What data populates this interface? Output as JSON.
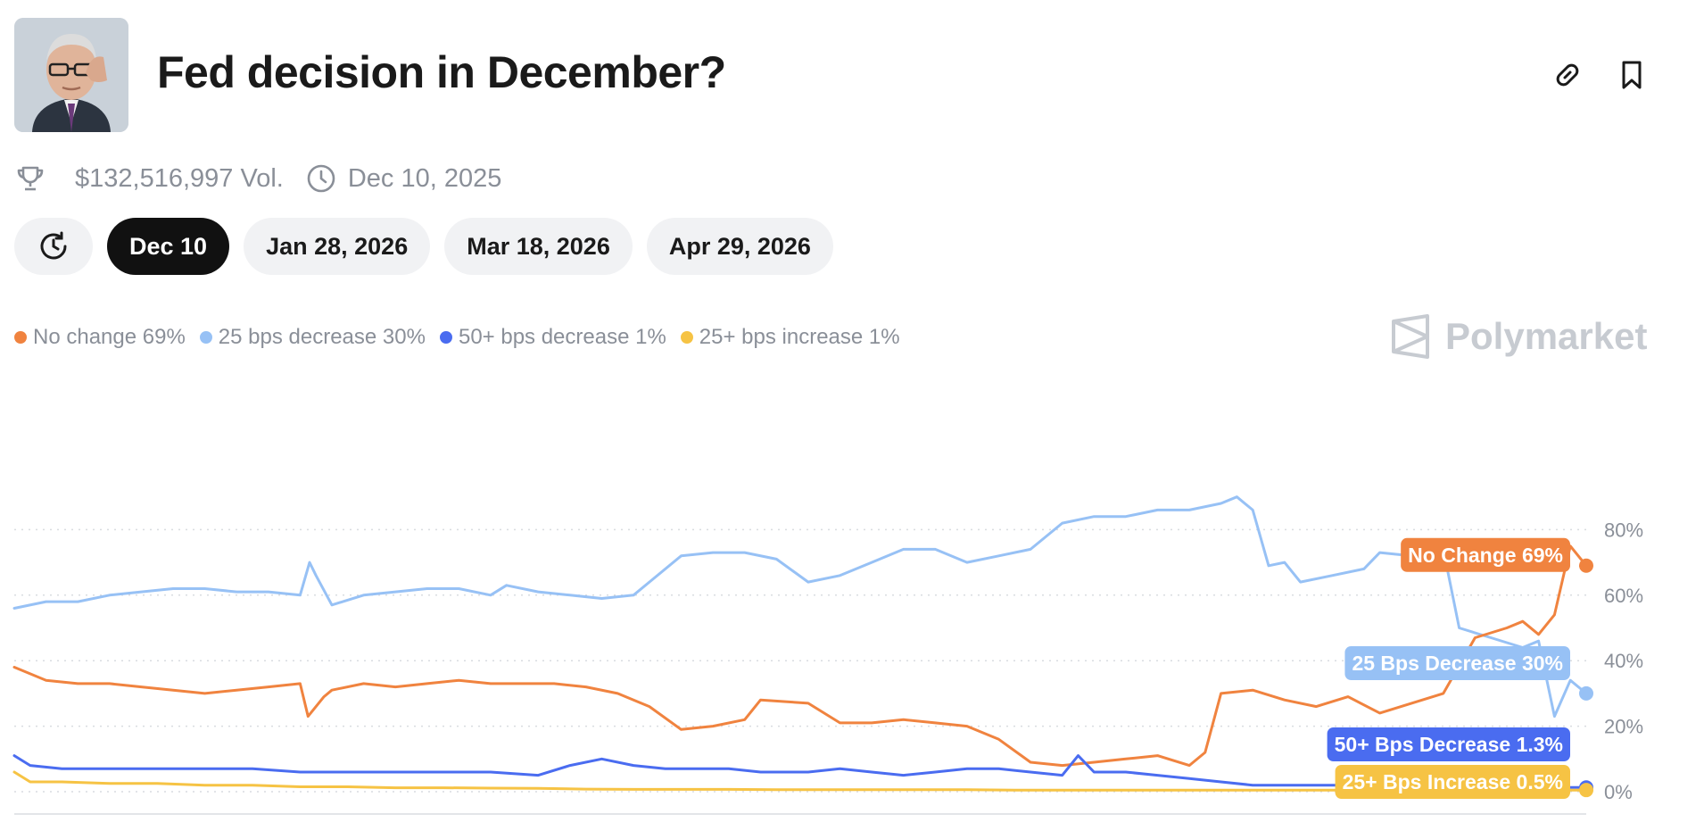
{
  "header": {
    "title": "Fed decision in December?"
  },
  "meta": {
    "volume": "$132,516,997 Vol.",
    "date": "Dec 10, 2025"
  },
  "tabs": [
    {
      "label": "Dec 10",
      "active": true
    },
    {
      "label": "Jan 28, 2026",
      "active": false
    },
    {
      "label": "Mar 18, 2026",
      "active": false
    },
    {
      "label": "Apr 29, 2026",
      "active": false
    }
  ],
  "brand": "Polymarket",
  "colors": {
    "no_change": "#f0833f",
    "bps25_decrease": "#97c1f5",
    "bps50_decrease": "#4a6cf0",
    "bps25_increase": "#f6c344"
  },
  "chart_data": {
    "type": "line",
    "y_range": [
      0,
      100
    ],
    "y_ticks": [
      0,
      20,
      40,
      60,
      80
    ],
    "y_tick_labels": [
      "0%",
      "20%",
      "40%",
      "60%",
      "80%"
    ],
    "grid": true,
    "legend": [
      "No change 69%",
      "25 bps decrease 30%",
      "50+ bps decrease 1%",
      "25+ bps increase 1%"
    ],
    "end_labels": [
      "No Change 69%",
      "25 Bps Decrease 30%",
      "50+ Bps Decrease 1.3%",
      "25+ Bps Increase 0.5%"
    ],
    "series": [
      {
        "key": "no_change",
        "points": [
          [
            0,
            38
          ],
          [
            2,
            34
          ],
          [
            4,
            33
          ],
          [
            6,
            33
          ],
          [
            8,
            32
          ],
          [
            10,
            31
          ],
          [
            12,
            30
          ],
          [
            14,
            31
          ],
          [
            16,
            32
          ],
          [
            18,
            33
          ],
          [
            18.5,
            23
          ],
          [
            19.5,
            29
          ],
          [
            20,
            31
          ],
          [
            22,
            33
          ],
          [
            24,
            32
          ],
          [
            26,
            33
          ],
          [
            28,
            34
          ],
          [
            30,
            33
          ],
          [
            32,
            33
          ],
          [
            34,
            33
          ],
          [
            36,
            32
          ],
          [
            38,
            30
          ],
          [
            40,
            26
          ],
          [
            42,
            19
          ],
          [
            44,
            20
          ],
          [
            46,
            22
          ],
          [
            47,
            28
          ],
          [
            50,
            27
          ],
          [
            52,
            21
          ],
          [
            54,
            21
          ],
          [
            56,
            22
          ],
          [
            58,
            21
          ],
          [
            60,
            20
          ],
          [
            62,
            16
          ],
          [
            64,
            9
          ],
          [
            66,
            8
          ],
          [
            68,
            9
          ],
          [
            70,
            10
          ],
          [
            72,
            11
          ],
          [
            74,
            8
          ],
          [
            75,
            12
          ],
          [
            76,
            30
          ],
          [
            78,
            31
          ],
          [
            80,
            28
          ],
          [
            82,
            26
          ],
          [
            84,
            29
          ],
          [
            86,
            24
          ],
          [
            88,
            27
          ],
          [
            90,
            30
          ],
          [
            92,
            47
          ],
          [
            94,
            50
          ],
          [
            95,
            52
          ],
          [
            96,
            48
          ],
          [
            97,
            54
          ],
          [
            98,
            75
          ],
          [
            99,
            69
          ]
        ]
      },
      {
        "key": "bps25_decrease",
        "points": [
          [
            0,
            56
          ],
          [
            2,
            58
          ],
          [
            4,
            58
          ],
          [
            6,
            60
          ],
          [
            8,
            61
          ],
          [
            10,
            62
          ],
          [
            12,
            62
          ],
          [
            14,
            61
          ],
          [
            16,
            61
          ],
          [
            18,
            60
          ],
          [
            18.6,
            70
          ],
          [
            19,
            66
          ],
          [
            20,
            57
          ],
          [
            22,
            60
          ],
          [
            24,
            61
          ],
          [
            26,
            62
          ],
          [
            28,
            62
          ],
          [
            30,
            60
          ],
          [
            31,
            63
          ],
          [
            33,
            61
          ],
          [
            35,
            60
          ],
          [
            37,
            59
          ],
          [
            39,
            60
          ],
          [
            40,
            64
          ],
          [
            42,
            72
          ],
          [
            44,
            73
          ],
          [
            46,
            73
          ],
          [
            48,
            71
          ],
          [
            50,
            64
          ],
          [
            52,
            66
          ],
          [
            54,
            70
          ],
          [
            56,
            74
          ],
          [
            58,
            74
          ],
          [
            60,
            70
          ],
          [
            62,
            72
          ],
          [
            64,
            74
          ],
          [
            66,
            82
          ],
          [
            68,
            84
          ],
          [
            70,
            84
          ],
          [
            72,
            86
          ],
          [
            74,
            86
          ],
          [
            76,
            88
          ],
          [
            77,
            90
          ],
          [
            78,
            86
          ],
          [
            79,
            69
          ],
          [
            80,
            70
          ],
          [
            81,
            64
          ],
          [
            83,
            66
          ],
          [
            85,
            68
          ],
          [
            86,
            73
          ],
          [
            88,
            72
          ],
          [
            90,
            74
          ],
          [
            91,
            50
          ],
          [
            93,
            47
          ],
          [
            95,
            44
          ],
          [
            96,
            46
          ],
          [
            97,
            23
          ],
          [
            98,
            34
          ],
          [
            99,
            30
          ]
        ]
      },
      {
        "key": "bps50_decrease",
        "points": [
          [
            0,
            11
          ],
          [
            1,
            8
          ],
          [
            3,
            7
          ],
          [
            6,
            7
          ],
          [
            9,
            7
          ],
          [
            12,
            7
          ],
          [
            15,
            7
          ],
          [
            18,
            6
          ],
          [
            21,
            6
          ],
          [
            24,
            6
          ],
          [
            27,
            6
          ],
          [
            30,
            6
          ],
          [
            33,
            5
          ],
          [
            35,
            8
          ],
          [
            37,
            10
          ],
          [
            39,
            8
          ],
          [
            41,
            7
          ],
          [
            43,
            7
          ],
          [
            45,
            7
          ],
          [
            47,
            6
          ],
          [
            50,
            6
          ],
          [
            52,
            7
          ],
          [
            54,
            6
          ],
          [
            56,
            5
          ],
          [
            58,
            6
          ],
          [
            60,
            7
          ],
          [
            62,
            7
          ],
          [
            64,
            6
          ],
          [
            66,
            5
          ],
          [
            67,
            11
          ],
          [
            68,
            6
          ],
          [
            70,
            6
          ],
          [
            72,
            5
          ],
          [
            74,
            4
          ],
          [
            76,
            3
          ],
          [
            78,
            2
          ],
          [
            80,
            2
          ],
          [
            82,
            2
          ],
          [
            84,
            2
          ],
          [
            86,
            1.5
          ],
          [
            88,
            1.5
          ],
          [
            90,
            1.5
          ],
          [
            92,
            1.3
          ],
          [
            94,
            1.3
          ],
          [
            96,
            1.3
          ],
          [
            98,
            1.3
          ],
          [
            99,
            1.3
          ]
        ]
      },
      {
        "key": "bps25_increase",
        "points": [
          [
            0,
            6
          ],
          [
            1,
            3
          ],
          [
            3,
            3
          ],
          [
            6,
            2.5
          ],
          [
            9,
            2.5
          ],
          [
            12,
            2
          ],
          [
            15,
            2
          ],
          [
            18,
            1.5
          ],
          [
            21,
            1.5
          ],
          [
            24,
            1.2
          ],
          [
            27,
            1.2
          ],
          [
            30,
            1.1
          ],
          [
            33,
            1
          ],
          [
            36,
            0.8
          ],
          [
            39,
            0.7
          ],
          [
            42,
            0.7
          ],
          [
            45,
            0.7
          ],
          [
            48,
            0.6
          ],
          [
            51,
            0.6
          ],
          [
            54,
            0.6
          ],
          [
            57,
            0.6
          ],
          [
            60,
            0.6
          ],
          [
            63,
            0.5
          ],
          [
            66,
            0.5
          ],
          [
            69,
            0.5
          ],
          [
            72,
            0.5
          ],
          [
            75,
            0.5
          ],
          [
            78,
            0.5
          ],
          [
            81,
            0.5
          ],
          [
            84,
            0.5
          ],
          [
            87,
            0.5
          ],
          [
            90,
            0.5
          ],
          [
            93,
            0.5
          ],
          [
            96,
            0.5
          ],
          [
            99,
            0.5
          ]
        ]
      }
    ]
  }
}
